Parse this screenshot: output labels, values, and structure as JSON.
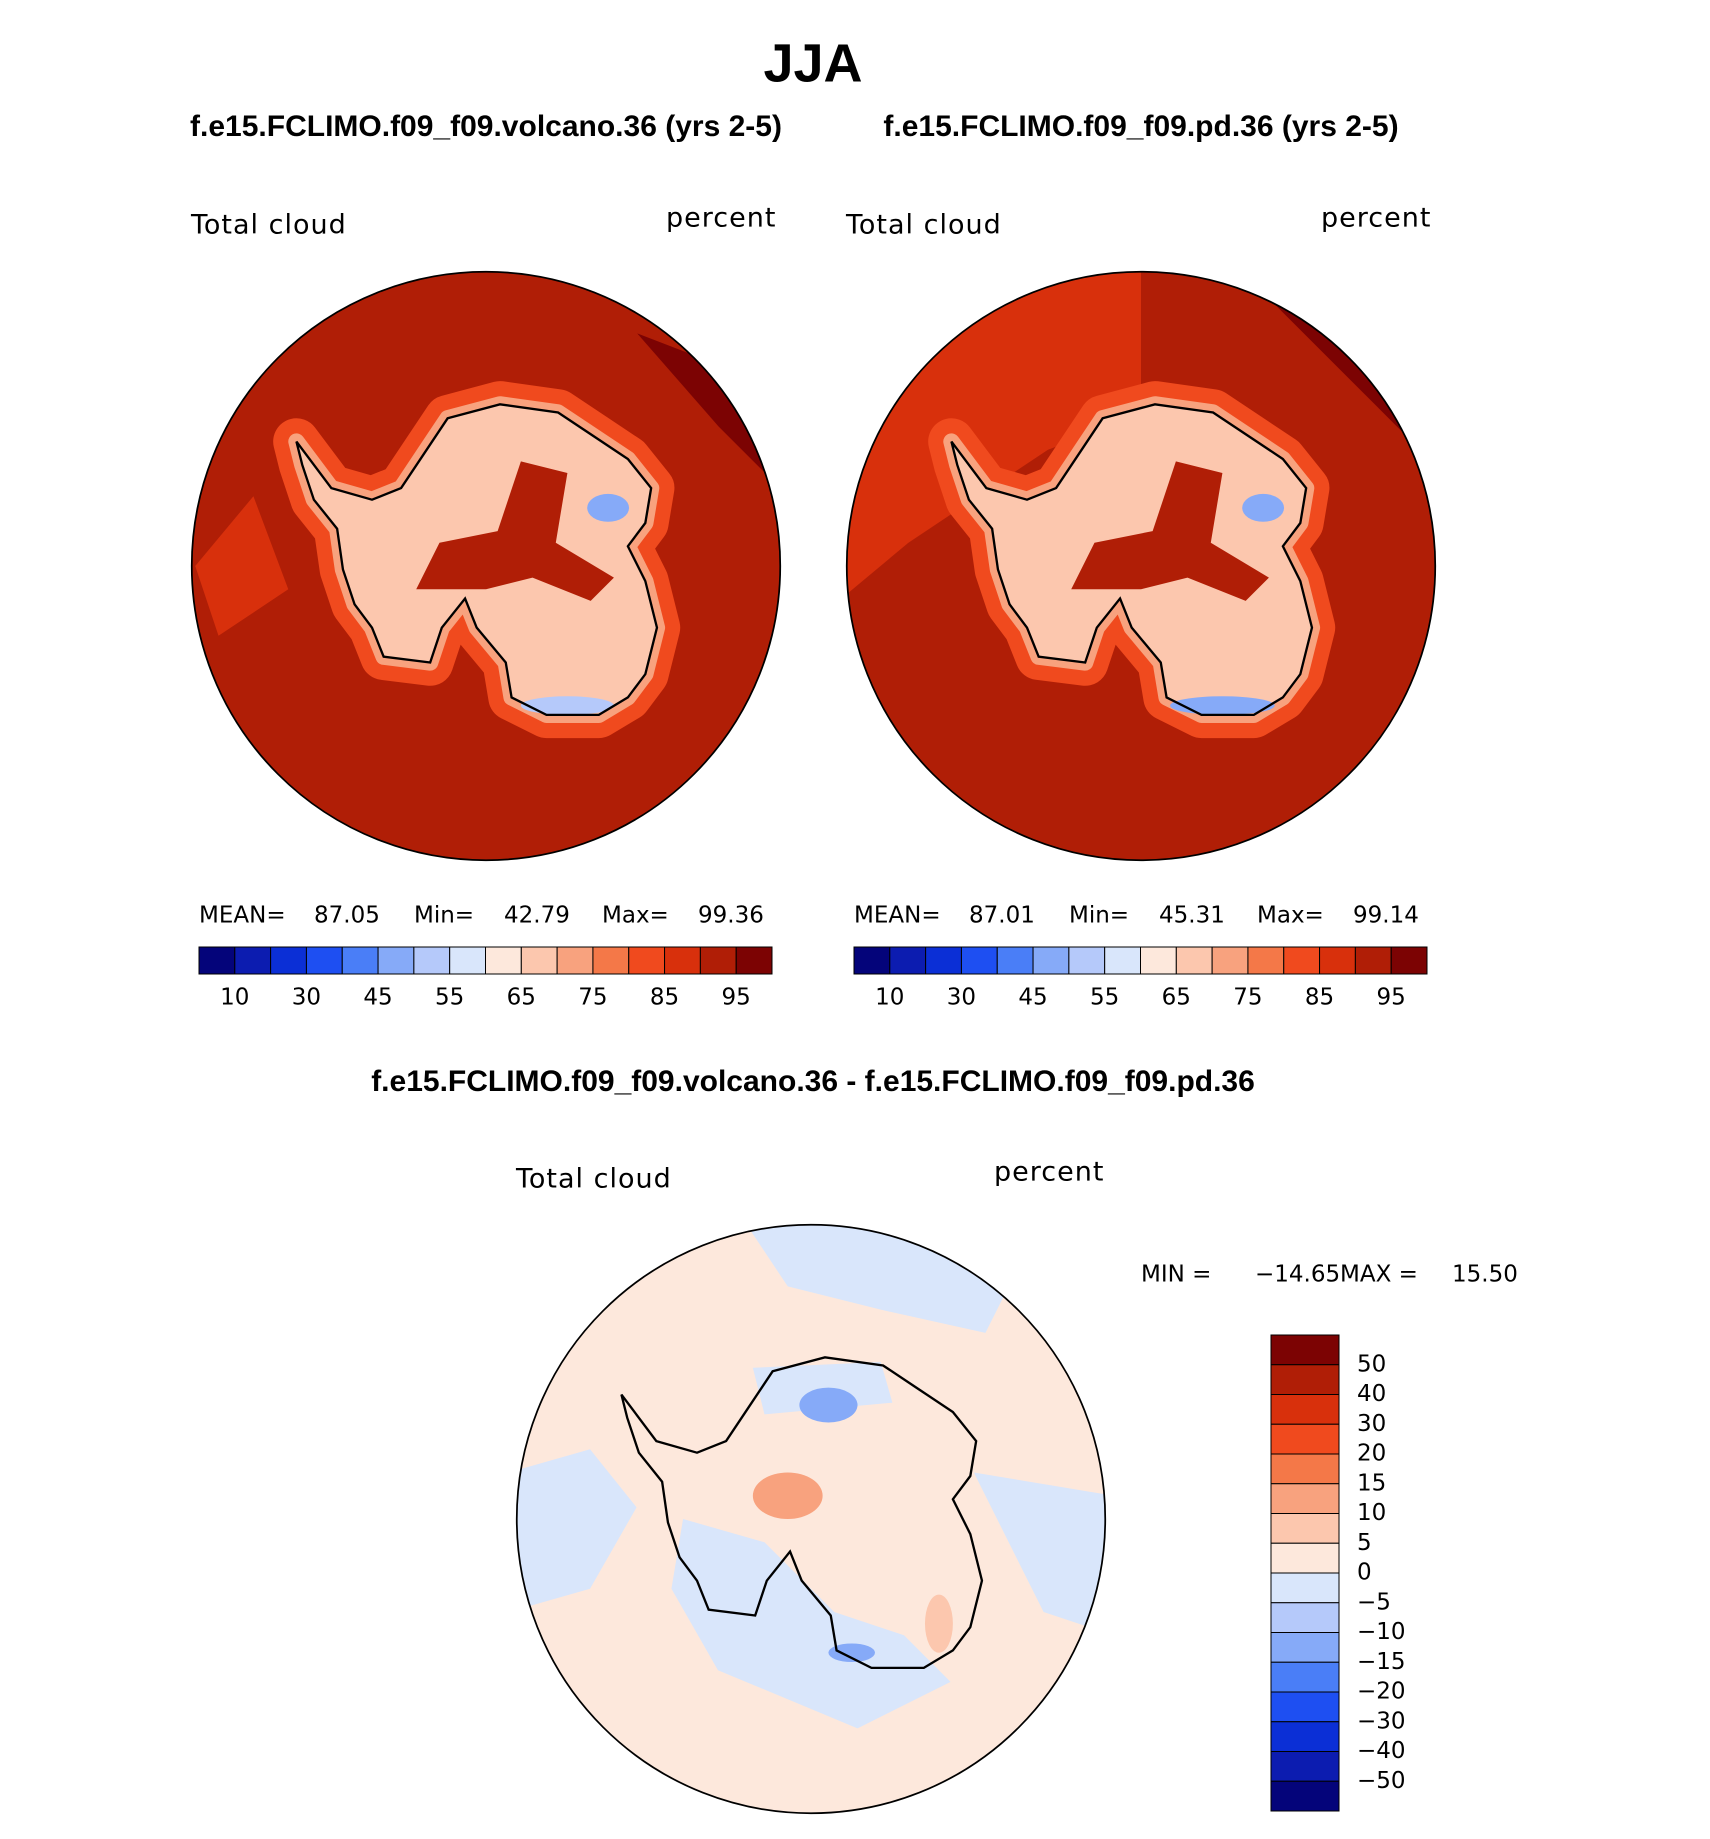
{
  "title": "JJA",
  "panels": [
    {
      "title": "f.e15.FCLIMO.f09_f09.volcano.36 (yrs 2-5)",
      "variable": "Total cloud",
      "units": "percent",
      "stats": [
        {
          "label": "MEAN=",
          "value": 87.05
        },
        {
          "label": "Min=",
          "value": 42.79
        },
        {
          "label": "Max=",
          "value": 99.36
        }
      ]
    },
    {
      "title": "f.e15.FCLIMO.f09_f09.pd.36 (yrs 2-5)",
      "variable": "Total cloud",
      "units": "percent",
      "stats": [
        {
          "label": "MEAN=",
          "value": 87.01
        },
        {
          "label": "Min=",
          "value": 45.31
        },
        {
          "label": "Max=",
          "value": 99.14
        }
      ]
    }
  ],
  "colorbar": {
    "labels": [
      10,
      30,
      45,
      55,
      65,
      75,
      85,
      95
    ],
    "colors": [
      "#04047a",
      "#0c1cb0",
      "#0b2fd6",
      "#1e4ff2",
      "#4a7ef7",
      "#86aaf8",
      "#b5c9fa",
      "#d9e6fb",
      "#fde8dc",
      "#fcc7ae",
      "#f8a27e",
      "#f47848",
      "#f04a1e",
      "#d8300c",
      "#b01e06",
      "#7c0303"
    ]
  },
  "difference": {
    "title": "f.e15.FCLIMO.f09_f09.volcano.36 - f.e15.FCLIMO.f09_f09.pd.36",
    "variable": "Total cloud",
    "units": "percent",
    "stats": [
      {
        "label": "MIN =",
        "value": {
          "value": -14.65,
          "label": "−14.65"
        }
      },
      {
        "label": "MAX =",
        "value": {
          "value": 15.5,
          "label": "15.50"
        }
      }
    ],
    "colorbar": {
      "labels": [
        50,
        40,
        30,
        20,
        15,
        10,
        5,
        0,
        {
          "value": -5,
          "label": "−5"
        },
        {
          "value": -10,
          "label": "−10"
        },
        {
          "value": -15,
          "label": "−15"
        },
        {
          "value": -20,
          "label": "−20"
        },
        {
          "value": -30,
          "label": "−30"
        },
        {
          "value": -40,
          "label": "−40"
        },
        {
          "value": -50,
          "label": "−50"
        }
      ],
      "colors": [
        "#7c0303",
        "#b01e06",
        "#d8300c",
        "#f04a1e",
        "#f47848",
        "#f8a27e",
        "#fcc7ae",
        "#fde8dc",
        "#d9e6fb",
        "#b5c9fa",
        "#86aaf8",
        "#4a7ef7",
        "#1e4ff2",
        "#0b2fd6",
        "#0c1cb0",
        "#04047a"
      ]
    }
  }
}
